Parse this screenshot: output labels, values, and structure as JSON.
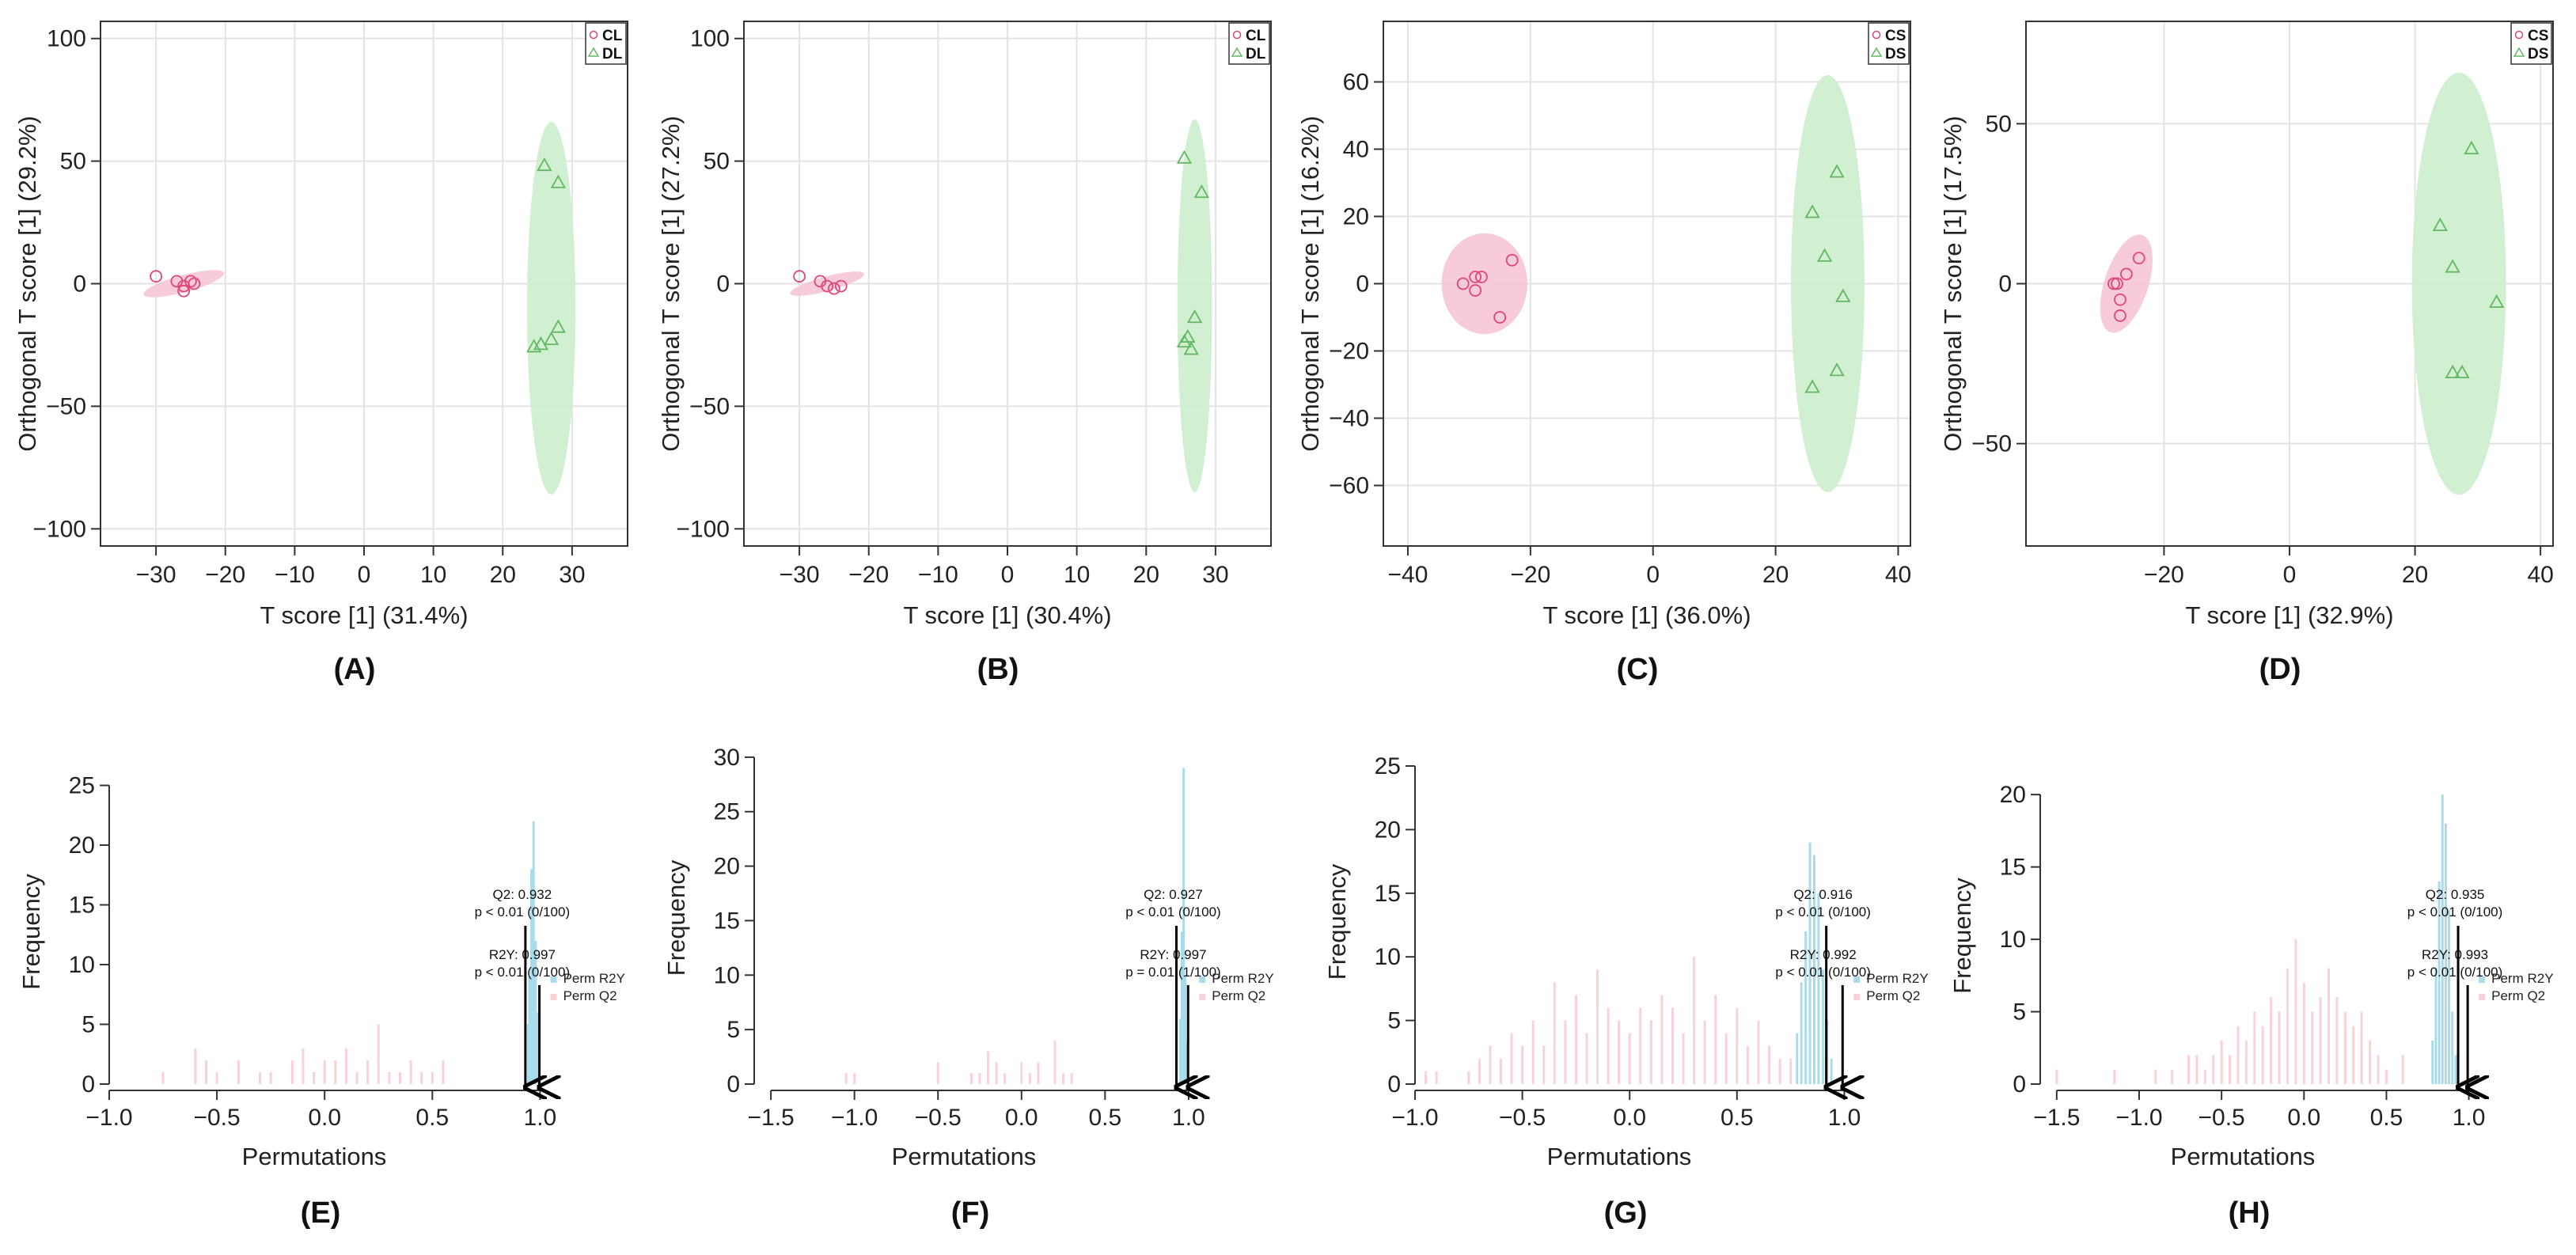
{
  "colors": {
    "pink": "#e0457b",
    "pink_fill": "#f7c8d6",
    "green": "#62b862",
    "green_fill": "#cfeecf",
    "blue_hist": "#a9dcea",
    "pink_hist": "#f9d2d8",
    "grid": "#e3e3e3",
    "axis": "#333333"
  },
  "chart_data": [
    {
      "type": "scatter",
      "panel_label": "(A)",
      "xlabel": "T score [1] (31.4%)",
      "ylabel": "Orthogonal T score [1] (29.2%)",
      "xlim": [
        -38,
        38
      ],
      "ylim": [
        -107,
        107
      ],
      "xticks": [
        -30,
        -20,
        -10,
        0,
        10,
        20,
        30
      ],
      "yticks": [
        -100,
        -50,
        0,
        50,
        100
      ],
      "legend": [
        {
          "name": "CL",
          "marker": "circle"
        },
        {
          "name": "DL",
          "marker": "triangle"
        }
      ],
      "series": [
        {
          "name": "CL",
          "marker": "circle",
          "points": [
            [
              -30,
              3
            ],
            [
              -27,
              1
            ],
            [
              -26,
              -1
            ],
            [
              -25,
              1
            ],
            [
              -24.5,
              0
            ],
            [
              -26,
              -3
            ]
          ],
          "ellipse": {
            "cx": -26,
            "cy": 0,
            "rx": 6,
            "ry": 3.5,
            "angle": -15
          }
        },
        {
          "name": "DL",
          "marker": "triangle",
          "points": [
            [
              26,
              48
            ],
            [
              28,
              41
            ],
            [
              28,
              -18
            ],
            [
              27,
              -23
            ],
            [
              25.5,
              -25
            ],
            [
              24.5,
              -26
            ]
          ],
          "ellipse": {
            "cx": 27,
            "cy": -10,
            "rx": 3.5,
            "ry": 76,
            "angle": 0
          }
        }
      ]
    },
    {
      "type": "scatter",
      "panel_label": "(B)",
      "xlabel": "T score [1] (30.4%)",
      "ylabel": "Orthogonal T score [1] (27.2%)",
      "xlim": [
        -38,
        38
      ],
      "ylim": [
        -107,
        107
      ],
      "xticks": [
        -30,
        -20,
        -10,
        0,
        10,
        20,
        30
      ],
      "yticks": [
        -100,
        -50,
        0,
        50,
        100
      ],
      "legend": [
        {
          "name": "CL",
          "marker": "circle"
        },
        {
          "name": "DL",
          "marker": "triangle"
        }
      ],
      "series": [
        {
          "name": "CL",
          "marker": "circle",
          "points": [
            [
              -30,
              3
            ],
            [
              -27,
              1
            ],
            [
              -26,
              -1
            ],
            [
              -25,
              -2
            ],
            [
              -24,
              -1
            ]
          ],
          "ellipse": {
            "cx": -26,
            "cy": 0,
            "rx": 5.5,
            "ry": 3,
            "angle": -15
          }
        },
        {
          "name": "DL",
          "marker": "triangle",
          "points": [
            [
              25.5,
              51
            ],
            [
              28,
              37
            ],
            [
              27,
              -14
            ],
            [
              26,
              -22
            ],
            [
              25.5,
              -24
            ],
            [
              26.5,
              -27
            ]
          ],
          "ellipse": {
            "cx": 27,
            "cy": -9,
            "rx": 2.5,
            "ry": 76,
            "angle": 0
          }
        }
      ]
    },
    {
      "type": "scatter",
      "panel_label": "(C)",
      "xlabel": "T score [1] (36.0%)",
      "ylabel": "Orthogonal T score [1] (16.2%)",
      "xlim": [
        -44,
        42
      ],
      "ylim": [
        -78,
        78
      ],
      "xticks": [
        -40,
        -20,
        0,
        20,
        40
      ],
      "yticks": [
        -60,
        -40,
        -20,
        0,
        20,
        40,
        60
      ],
      "legend": [
        {
          "name": "CS",
          "marker": "circle"
        },
        {
          "name": "DS",
          "marker": "triangle"
        }
      ],
      "series": [
        {
          "name": "CS",
          "marker": "circle",
          "points": [
            [
              -31,
              0
            ],
            [
              -29,
              2
            ],
            [
              -28,
              2
            ],
            [
              -29,
              -2
            ],
            [
              -23,
              7
            ],
            [
              -25,
              -10
            ]
          ],
          "ellipse": {
            "cx": -27.5,
            "cy": 0,
            "rx": 7,
            "ry": 15,
            "angle": 0
          }
        },
        {
          "name": "DS",
          "marker": "triangle",
          "points": [
            [
              30,
              33
            ],
            [
              26,
              21
            ],
            [
              28,
              8
            ],
            [
              31,
              -4
            ],
            [
              30,
              -26
            ],
            [
              26,
              -31
            ]
          ],
          "ellipse": {
            "cx": 28.5,
            "cy": 0,
            "rx": 6,
            "ry": 62,
            "angle": 0
          }
        }
      ]
    },
    {
      "type": "scatter",
      "panel_label": "(D)",
      "xlabel": "T score [1] (32.9%)",
      "ylabel": "Orthogonal T score [1] (17.5%)",
      "xlim": [
        -42,
        42
      ],
      "ylim": [
        -82,
        82
      ],
      "xticks": [
        -20,
        0,
        20,
        40
      ],
      "yticks": [
        -50,
        0,
        50
      ],
      "legend": [
        {
          "name": "CS",
          "marker": "circle"
        },
        {
          "name": "DS",
          "marker": "triangle"
        }
      ],
      "series": [
        {
          "name": "CS",
          "marker": "circle",
          "points": [
            [
              -28,
              0
            ],
            [
              -27.5,
              0
            ],
            [
              -27,
              -5
            ],
            [
              -27,
              -10
            ],
            [
              -26,
              3
            ],
            [
              -24,
              8
            ]
          ],
          "ellipse": {
            "cx": -26,
            "cy": 0,
            "rx": 3.5,
            "ry": 16,
            "angle": 18
          }
        },
        {
          "name": "DS",
          "marker": "triangle",
          "points": [
            [
              29,
              42
            ],
            [
              24,
              18
            ],
            [
              26,
              5
            ],
            [
              33,
              -6
            ],
            [
              26,
              -28
            ],
            [
              27.5,
              -28
            ]
          ],
          "ellipse": {
            "cx": 27,
            "cy": 0,
            "rx": 7.5,
            "ry": 66,
            "angle": 0
          }
        }
      ]
    },
    {
      "type": "histogram",
      "panel_label": "(E)",
      "xlabel": "Permutations",
      "ylabel": "Frequency",
      "xlim": [
        -1.0,
        1.05
      ],
      "ylim": [
        0,
        25.5
      ],
      "xticks": [
        -1.0,
        -0.5,
        0.0,
        0.5,
        1.0
      ],
      "yticks": [
        0,
        5,
        10,
        15,
        20,
        25
      ],
      "q2_bars": [
        [
          -0.75,
          1
        ],
        [
          -0.6,
          3
        ],
        [
          -0.55,
          2
        ],
        [
          -0.5,
          1
        ],
        [
          -0.4,
          2
        ],
        [
          -0.3,
          1
        ],
        [
          -0.25,
          1
        ],
        [
          -0.15,
          2
        ],
        [
          -0.1,
          3
        ],
        [
          -0.05,
          1
        ],
        [
          0.0,
          2
        ],
        [
          0.05,
          2
        ],
        [
          0.1,
          3
        ],
        [
          0.15,
          1
        ],
        [
          0.2,
          2
        ],
        [
          0.25,
          5
        ],
        [
          0.3,
          1
        ],
        [
          0.35,
          1
        ],
        [
          0.4,
          2
        ],
        [
          0.45,
          1
        ],
        [
          0.5,
          1
        ],
        [
          0.55,
          2
        ]
      ],
      "r2y_bars": [
        [
          0.945,
          5
        ],
        [
          0.95,
          9
        ],
        [
          0.96,
          18
        ],
        [
          0.97,
          22
        ],
        [
          0.98,
          12
        ],
        [
          0.99,
          6
        ]
      ],
      "q2": {
        "label": "Q2: 0.932",
        "p": "p < 0.01 (0/100)",
        "x": 0.932
      },
      "r2y": {
        "label": "R2Y: 0.997",
        "p": "p < 0.01 (0/100)",
        "x": 0.997
      },
      "legend": [
        "Perm R2Y",
        "Perm Q2"
      ]
    },
    {
      "type": "histogram",
      "panel_label": "(F)",
      "xlabel": "Permutations",
      "ylabel": "Frequency",
      "xlim": [
        -1.6,
        1.1
      ],
      "ylim": [
        0,
        30.5
      ],
      "xticks": [
        -1.5,
        -1.0,
        -0.5,
        0.0,
        0.5,
        1.0
      ],
      "yticks": [
        0,
        5,
        10,
        15,
        20,
        25,
        30
      ],
      "q2_bars": [
        [
          -1.05,
          1
        ],
        [
          -1.0,
          1
        ],
        [
          -0.5,
          2
        ],
        [
          -0.3,
          1
        ],
        [
          -0.25,
          1
        ],
        [
          -0.2,
          3
        ],
        [
          -0.15,
          2
        ],
        [
          -0.1,
          1
        ],
        [
          0.0,
          2
        ],
        [
          0.05,
          1
        ],
        [
          0.1,
          2
        ],
        [
          0.2,
          4
        ],
        [
          0.25,
          1
        ],
        [
          0.3,
          1
        ]
      ],
      "r2y_bars": [
        [
          0.95,
          6
        ],
        [
          0.96,
          14
        ],
        [
          0.97,
          29
        ],
        [
          0.98,
          10
        ],
        [
          0.99,
          4
        ]
      ],
      "q2": {
        "label": "Q2: 0.927",
        "p": "p < 0.01 (0/100)",
        "x": 0.927
      },
      "r2y": {
        "label": "R2Y: 0.997",
        "p": "p = 0.01 (1/100)",
        "x": 0.997
      },
      "legend": [
        "Perm R2Y",
        "Perm Q2"
      ]
    },
    {
      "type": "histogram",
      "panel_label": "(G)",
      "xlabel": "Permutations",
      "ylabel": "Frequency",
      "xlim": [
        -1.0,
        1.05
      ],
      "ylim": [
        0,
        25.5
      ],
      "xticks": [
        -1.0,
        -0.5,
        0.0,
        0.5,
        1.0
      ],
      "yticks": [
        0,
        5,
        10,
        15,
        20,
        25
      ],
      "q2_bars": [
        [
          -0.95,
          1
        ],
        [
          -0.9,
          1
        ],
        [
          -0.75,
          1
        ],
        [
          -0.7,
          2
        ],
        [
          -0.65,
          3
        ],
        [
          -0.6,
          2
        ],
        [
          -0.55,
          4
        ],
        [
          -0.5,
          3
        ],
        [
          -0.45,
          5
        ],
        [
          -0.4,
          3
        ],
        [
          -0.35,
          8
        ],
        [
          -0.3,
          5
        ],
        [
          -0.25,
          7
        ],
        [
          -0.2,
          4
        ],
        [
          -0.15,
          9
        ],
        [
          -0.1,
          6
        ],
        [
          -0.05,
          5
        ],
        [
          0.0,
          4
        ],
        [
          0.05,
          6
        ],
        [
          0.1,
          5
        ],
        [
          0.15,
          7
        ],
        [
          0.2,
          6
        ],
        [
          0.25,
          4
        ],
        [
          0.3,
          10
        ],
        [
          0.35,
          5
        ],
        [
          0.4,
          7
        ],
        [
          0.45,
          4
        ],
        [
          0.5,
          6
        ],
        [
          0.55,
          3
        ],
        [
          0.6,
          5
        ],
        [
          0.65,
          3
        ],
        [
          0.7,
          2
        ],
        [
          0.75,
          2
        ]
      ],
      "r2y_bars": [
        [
          0.78,
          4
        ],
        [
          0.8,
          8
        ],
        [
          0.82,
          12
        ],
        [
          0.84,
          19
        ],
        [
          0.86,
          18
        ],
        [
          0.88,
          15
        ],
        [
          0.9,
          9
        ],
        [
          0.92,
          5
        ],
        [
          0.94,
          2
        ]
      ],
      "q2": {
        "label": "Q2: 0.916",
        "p": "p < 0.01 (0/100)",
        "x": 0.916
      },
      "r2y": {
        "label": "R2Y: 0.992",
        "p": "p < 0.01 (0/100)",
        "x": 0.992
      },
      "legend": [
        "Perm R2Y",
        "Perm Q2"
      ]
    },
    {
      "type": "histogram",
      "panel_label": "(H)",
      "xlabel": "Permutations",
      "ylabel": "Frequency",
      "xlim": [
        -1.6,
        1.05
      ],
      "ylim": [
        0,
        20.5
      ],
      "xticks": [
        -1.5,
        -1.0,
        -0.5,
        0.0,
        0.5,
        1.0
      ],
      "yticks": [
        0,
        5,
        10,
        15,
        20
      ],
      "q2_bars": [
        [
          -1.5,
          1
        ],
        [
          -1.15,
          1
        ],
        [
          -0.9,
          1
        ],
        [
          -0.8,
          1
        ],
        [
          -0.7,
          2
        ],
        [
          -0.65,
          2
        ],
        [
          -0.6,
          1
        ],
        [
          -0.55,
          2
        ],
        [
          -0.5,
          3
        ],
        [
          -0.45,
          2
        ],
        [
          -0.4,
          4
        ],
        [
          -0.35,
          3
        ],
        [
          -0.3,
          5
        ],
        [
          -0.25,
          4
        ],
        [
          -0.2,
          6
        ],
        [
          -0.15,
          5
        ],
        [
          -0.1,
          8
        ],
        [
          -0.05,
          10
        ],
        [
          0.0,
          7
        ],
        [
          0.05,
          5
        ],
        [
          0.1,
          6
        ],
        [
          0.15,
          8
        ],
        [
          0.2,
          6
        ],
        [
          0.25,
          5
        ],
        [
          0.3,
          4
        ],
        [
          0.35,
          5
        ],
        [
          0.4,
          3
        ],
        [
          0.45,
          2
        ],
        [
          0.5,
          1
        ],
        [
          0.6,
          2
        ]
      ],
      "r2y_bars": [
        [
          0.78,
          3
        ],
        [
          0.8,
          8
        ],
        [
          0.82,
          14
        ],
        [
          0.84,
          20
        ],
        [
          0.86,
          18
        ],
        [
          0.88,
          12
        ],
        [
          0.9,
          5
        ],
        [
          0.92,
          2
        ]
      ],
      "q2": {
        "label": "Q2: 0.935",
        "p": "p < 0.01 (0/100)",
        "x": 0.935
      },
      "r2y": {
        "label": "R2Y: 0.993",
        "p": "p < 0.01 (0/100)",
        "x": 0.993
      },
      "legend": [
        "Perm R2Y",
        "Perm Q2"
      ]
    }
  ]
}
